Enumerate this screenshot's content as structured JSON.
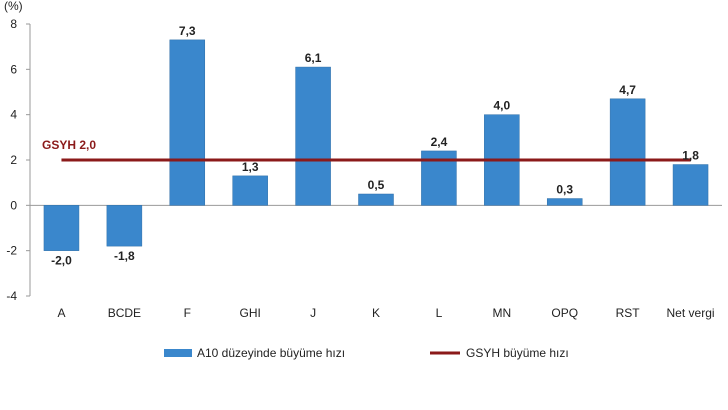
{
  "chart_data": {
    "type": "bar",
    "y_unit": "(%)",
    "categories": [
      "A",
      "BCDE",
      "F",
      "GHI",
      "J",
      "K",
      "L",
      "MN",
      "OPQ",
      "RST",
      "Net vergi"
    ],
    "series": [
      {
        "name": "A10 düzeyinde büyüme hızı",
        "values": [
          -2.0,
          -1.8,
          7.3,
          1.3,
          6.1,
          0.5,
          2.4,
          4.0,
          0.3,
          4.7,
          1.8
        ],
        "labels": [
          "-2,0",
          "-1,8",
          "7,3",
          "1,3",
          "6,1",
          "0,5",
          "2,4",
          "4,0",
          "0,3",
          "4,7",
          "1,8"
        ],
        "color": "#3a87cc"
      }
    ],
    "reference_line": {
      "name": "GSYH büyüme hızı",
      "value": 2.0,
      "label": "GSYH 2,0",
      "color": "#8b1a1a"
    },
    "ylim": [
      -4,
      8
    ],
    "yticks": [
      -4,
      -2,
      0,
      2,
      4,
      6,
      8
    ],
    "ytick_labels": [
      "-4",
      "-2",
      "0",
      "2",
      "4",
      "6",
      "8"
    ],
    "grid": false,
    "legend": "bottom"
  }
}
